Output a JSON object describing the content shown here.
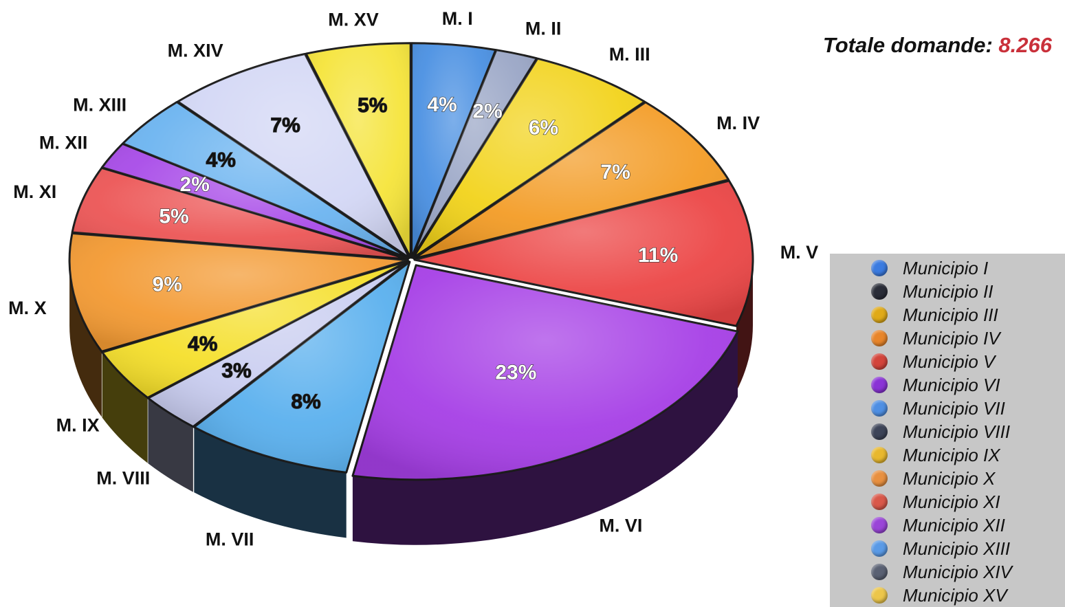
{
  "chart_data": {
    "type": "pie",
    "total_label": "Totale domande:",
    "total_value": "8.266",
    "legend_position": "bottom-right",
    "slices": [
      {
        "label": "M. I",
        "legend": "Municipio I",
        "value": 4,
        "pct_label": "4%",
        "color": "#4a90e2",
        "text_color": "#ffffff"
      },
      {
        "label": "M. II",
        "legend": "Municipio II",
        "value": 2,
        "pct_label": "2%",
        "color": "#9aa6c6",
        "text_color": "#ffffff"
      },
      {
        "label": "M. III",
        "legend": "Municipio III",
        "value": 6,
        "pct_label": "6%",
        "color": "#f2d31b",
        "text_color": "#ffffff"
      },
      {
        "label": "M. IV",
        "legend": "Municipio IV",
        "value": 7,
        "pct_label": "7%",
        "color": "#f39c26",
        "text_color": "#ffffff"
      },
      {
        "label": "M. V",
        "legend": "Municipio V",
        "value": 11,
        "pct_label": "11%",
        "color": "#ec4646",
        "text_color": "#ffffff"
      },
      {
        "label": "M. VI",
        "legend": "Municipio VI",
        "value": 23,
        "pct_label": "23%",
        "color": "#a63fe6",
        "text_color": "#ffffff"
      },
      {
        "label": "M. VII",
        "legend": "Municipio VII",
        "value": 8,
        "pct_label": "8%",
        "color": "#5ab0ee",
        "text_color": "#111111"
      },
      {
        "label": "M. VIII",
        "legend": "Municipio VIII",
        "value": 3,
        "pct_label": "3%",
        "color": "#c9cdf0",
        "text_color": "#111111"
      },
      {
        "label": "M. IX",
        "legend": "Municipio IX",
        "value": 4,
        "pct_label": "4%",
        "color": "#f5df2b",
        "text_color": "#111111"
      },
      {
        "label": "M. X",
        "legend": "Municipio X",
        "value": 9,
        "pct_label": "9%",
        "color": "#f39a33",
        "text_color": "#ffffff"
      },
      {
        "label": "M. XI",
        "legend": "Municipio XI",
        "value": 5,
        "pct_label": "5%",
        "color": "#ec5656",
        "text_color": "#ffffff"
      },
      {
        "label": "M. XII",
        "legend": "Municipio XII",
        "value": 2,
        "pct_label": "2%",
        "color": "#a84be8",
        "text_color": "#ffffff"
      },
      {
        "label": "M. XIII",
        "legend": "Municipio XIII",
        "value": 4,
        "pct_label": "4%",
        "color": "#6cb4f0",
        "text_color": "#111111"
      },
      {
        "label": "M. XIV",
        "legend": "Municipio XIV",
        "value": 7,
        "pct_label": "7%",
        "color": "#d3d7f5",
        "text_color": "#111111"
      },
      {
        "label": "M. XV",
        "legend": "Municipio XV",
        "value": 5,
        "pct_label": "5%",
        "color": "#f5e43a",
        "text_color": "#111111"
      }
    ]
  },
  "legend_colors": [
    "#3b7be0",
    "#2a2d38",
    "#e0aa18",
    "#e8852a",
    "#d3443b",
    "#8a33d6",
    "#4f8fe3",
    "#3d4458",
    "#e8b82e",
    "#e89040",
    "#d9584a",
    "#9a45d8",
    "#5a9ae6",
    "#5a6173",
    "#ecc64a"
  ]
}
